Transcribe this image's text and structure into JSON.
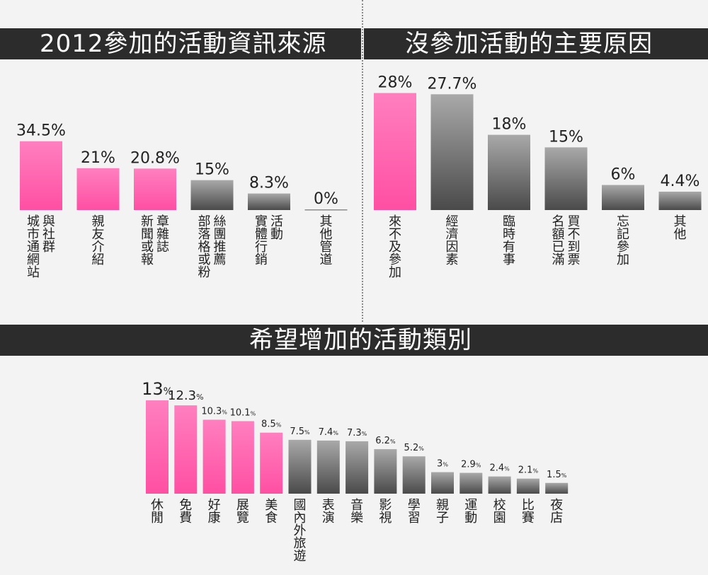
{
  "colors": {
    "pink_top": "#ff7fbf",
    "pink_bottom": "#ff4fa3",
    "gray_top": "#a9a9a9",
    "gray_bottom": "#4a4a4a",
    "header_bg": "#2c2c2c",
    "background": "#f3f3f3"
  },
  "chart_data": [
    {
      "type": "bar",
      "title": "2012參加的活動資訊來源",
      "categories": [
        "與社群城市通網站",
        "親友介紹",
        "章雜誌新聞或報",
        "絲團推薦部落格或粉",
        "活動實體行銷",
        "其他管道"
      ],
      "labels": [
        [
          "與社群",
          "城市通網站"
        ],
        [
          "親友介紹"
        ],
        [
          "章雜誌",
          "新聞或報"
        ],
        [
          "絲團推薦",
          "部落格或粉"
        ],
        [
          "活動",
          "實體行銷"
        ],
        [
          "其他管道"
        ]
      ],
      "values": [
        34.5,
        21,
        20.8,
        15,
        8.3,
        0
      ],
      "value_labels": [
        "34.5%",
        "21%",
        "20.8%",
        "15%",
        "8.3%",
        "0%"
      ],
      "highlight": [
        true,
        true,
        true,
        false,
        false,
        false
      ]
    },
    {
      "type": "bar",
      "title": "沒參加活動的主要原因",
      "categories": [
        "來不及參加",
        "經濟因素",
        "臨時有事",
        "買不到票名額已滿",
        "忘記參加",
        "其他"
      ],
      "labels": [
        [
          "來不及參加"
        ],
        [
          "經濟因素"
        ],
        [
          "臨時有事"
        ],
        [
          "買不到票",
          "名額已滿"
        ],
        [
          "忘記參加"
        ],
        [
          "其他"
        ]
      ],
      "values": [
        28,
        27.7,
        18,
        15,
        6,
        4.4
      ],
      "value_labels": [
        "28%",
        "27.7%",
        "18%",
        "15%",
        "6%",
        "4.4%"
      ],
      "highlight": [
        true,
        false,
        false,
        false,
        false,
        false
      ]
    },
    {
      "type": "bar",
      "title": "希望增加的活動類別",
      "categories": [
        "休閒",
        "免費",
        "好康",
        "展覽",
        "美食",
        "國內外旅遊",
        "表演",
        "音樂",
        "影視",
        "學習",
        "親子",
        "運動",
        "校園",
        "比賽",
        "夜店"
      ],
      "labels": [
        [
          "休閒"
        ],
        [
          "免費"
        ],
        [
          "好康"
        ],
        [
          "展覽"
        ],
        [
          "美食"
        ],
        [
          "國內外旅遊"
        ],
        [
          "表演"
        ],
        [
          "音樂"
        ],
        [
          "影視"
        ],
        [
          "學習"
        ],
        [
          "親子"
        ],
        [
          "運動"
        ],
        [
          "校園"
        ],
        [
          "比賽"
        ],
        [
          "夜店"
        ]
      ],
      "values": [
        13,
        12.3,
        10.3,
        10.1,
        8.5,
        7.5,
        7.4,
        7.3,
        6.2,
        5.2,
        3,
        2.9,
        2.4,
        2.1,
        1.5
      ],
      "value_numbers": [
        "13",
        "12.3",
        "10.3",
        "10.1",
        "8.5",
        "7.5",
        "7.4",
        "7.3",
        "6.2",
        "5.2",
        "3",
        "2.9",
        "2.4",
        "2.1",
        "1.5"
      ],
      "highlight": [
        true,
        true,
        true,
        true,
        true,
        false,
        false,
        false,
        false,
        false,
        false,
        false,
        false,
        false,
        false
      ]
    }
  ]
}
